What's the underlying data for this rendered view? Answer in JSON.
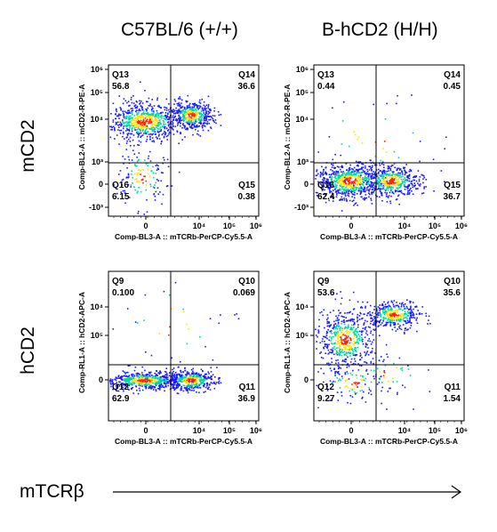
{
  "column_titles": [
    "C57BL/6 (+/+)",
    "B-hCD2 (H/H)"
  ],
  "row_labels": [
    "mCD2",
    "hCD2"
  ],
  "bottom_label": "mTCRβ",
  "colors": {
    "density_low": "#1a1aff",
    "density_mid": "#00d4a0",
    "density_high": "#ffe000",
    "density_peak": "#ff2000",
    "gate_line": "#000000"
  },
  "chart_data": [
    {
      "type": "scatter",
      "panel": "mCD2 vs mTCRb, C57BL/6 (+/+)",
      "xlabel": "Comp-BL3-A :: mTCRb-PerCP-Cy5.5-A",
      "ylabel": "Comp-BL2-A :: mCD2-R-PE-A",
      "xticks": [
        "0",
        "10⁴",
        "10⁵",
        "10⁶"
      ],
      "yticks": [
        "10⁶",
        "10⁵",
        "10⁴",
        "10³",
        "0",
        "-10³"
      ],
      "quadrants": [
        {
          "name": "Q13",
          "value": "56.8",
          "pos": "top-left"
        },
        {
          "name": "Q14",
          "value": "36.6",
          "pos": "top-right"
        },
        {
          "name": "Q16",
          "value": "6.15",
          "pos": "bottom-left"
        },
        {
          "name": "Q15",
          "value": "0.38",
          "pos": "bottom-right"
        }
      ]
    },
    {
      "type": "scatter",
      "panel": "mCD2 vs mTCRb, B-hCD2 (H/H)",
      "xlabel": "Comp-BL3-A :: mTCRb-PerCP-Cy5.5-A",
      "ylabel": "Comp-BL2-A :: mCD2-R-PE-A",
      "xticks": [
        "0",
        "10⁴",
        "10⁵",
        "10⁶"
      ],
      "yticks": [
        "10⁶",
        "10⁵",
        "10⁴",
        "10³",
        "0",
        "-10³"
      ],
      "quadrants": [
        {
          "name": "Q13",
          "value": "0.44",
          "pos": "top-left"
        },
        {
          "name": "Q14",
          "value": "0.45",
          "pos": "top-right"
        },
        {
          "name": "Q16",
          "value": "62.4",
          "pos": "bottom-left"
        },
        {
          "name": "Q15",
          "value": "36.7",
          "pos": "bottom-right"
        }
      ]
    },
    {
      "type": "scatter",
      "panel": "hCD2 vs mTCRb, C57BL/6 (+/+)",
      "xlabel": "Comp-BL3-A :: mTCRb-PerCP-Cy5.5-A",
      "ylabel": "Comp-RL1-A :: hCD2-APC-A",
      "xticks": [
        "0",
        "10⁴",
        "10⁵",
        "10⁶"
      ],
      "yticks": [
        "10⁵",
        "10⁴",
        "0"
      ],
      "quadrants": [
        {
          "name": "Q9",
          "value": "0.100",
          "pos": "top-left"
        },
        {
          "name": "Q10",
          "value": "0.069",
          "pos": "top-right"
        },
        {
          "name": "Q12",
          "value": "62.9",
          "pos": "bottom-left"
        },
        {
          "name": "Q11",
          "value": "36.9",
          "pos": "bottom-right"
        }
      ]
    },
    {
      "type": "scatter",
      "panel": "hCD2 vs mTCRb, B-hCD2 (H/H)",
      "xlabel": "Comp-BL3-A :: mTCRb-PerCP-Cy5.5-A",
      "ylabel": "Comp-RL1-A :: hCD2-APC-A",
      "xticks": [
        "0",
        "10⁴",
        "10⁵",
        "10⁶"
      ],
      "yticks": [
        "10⁵",
        "10⁴",
        "0"
      ],
      "quadrants": [
        {
          "name": "Q9",
          "value": "53.6",
          "pos": "top-left"
        },
        {
          "name": "Q10",
          "value": "35.6",
          "pos": "top-right"
        },
        {
          "name": "Q12",
          "value": "9.27",
          "pos": "bottom-left"
        },
        {
          "name": "Q11",
          "value": "1.54",
          "pos": "bottom-right"
        }
      ]
    }
  ]
}
